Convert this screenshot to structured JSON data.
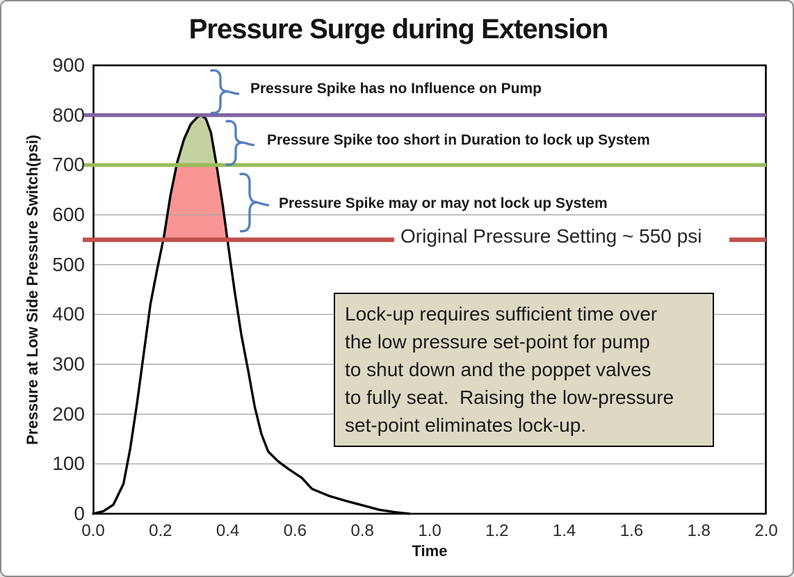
{
  "title": "Pressure Surge during Extension",
  "chart_data": {
    "type": "line",
    "title": "Pressure Surge during Extension",
    "xlabel": "Time",
    "ylabel": "Pressure at Low Side Pressure Switch(psi)",
    "xlim": [
      0.0,
      2.0
    ],
    "ylim": [
      0,
      900
    ],
    "xticks": [
      "0.0",
      "0.2",
      "0.4",
      "0.6",
      "0.8",
      "1.0",
      "1.2",
      "1.4",
      "1.6",
      "1.8",
      "2.0"
    ],
    "yticks": [
      "0",
      "100",
      "200",
      "300",
      "400",
      "500",
      "600",
      "700",
      "800",
      "900"
    ],
    "grid": {
      "horizontal_interval": 100,
      "color": "#A6A6A6",
      "max_line": 600
    },
    "series": [
      {
        "name": "pressure-surge",
        "color": "#000000",
        "points": [
          [
            0,
            0
          ],
          [
            0.03,
            5
          ],
          [
            0.06,
            18
          ],
          [
            0.09,
            60
          ],
          [
            0.11,
            130
          ],
          [
            0.13,
            220
          ],
          [
            0.15,
            320
          ],
          [
            0.17,
            420
          ],
          [
            0.19,
            490
          ],
          [
            0.21,
            555
          ],
          [
            0.23,
            640
          ],
          [
            0.25,
            706
          ],
          [
            0.27,
            752
          ],
          [
            0.29,
            782
          ],
          [
            0.31,
            796
          ],
          [
            0.32,
            800
          ],
          [
            0.335,
            793
          ],
          [
            0.35,
            765
          ],
          [
            0.365,
            706
          ],
          [
            0.385,
            620
          ],
          [
            0.4,
            545
          ],
          [
            0.42,
            448
          ],
          [
            0.44,
            360
          ],
          [
            0.46,
            290
          ],
          [
            0.48,
            215
          ],
          [
            0.5,
            160
          ],
          [
            0.52,
            125
          ],
          [
            0.55,
            105
          ],
          [
            0.58,
            90
          ],
          [
            0.62,
            72
          ],
          [
            0.65,
            50
          ],
          [
            0.7,
            36
          ],
          [
            0.75,
            26
          ],
          [
            0.8,
            17
          ],
          [
            0.85,
            8
          ],
          [
            0.9,
            3
          ],
          [
            0.94,
            0
          ]
        ]
      }
    ],
    "reference_lines": [
      {
        "value": 800,
        "color": "#8064A2",
        "label": ""
      },
      {
        "value": 700,
        "color": "#9BBB59",
        "label": ""
      },
      {
        "value": 550,
        "color": "#C0504D",
        "label": "Original Pressure Setting ~ 550 psi"
      }
    ],
    "shaded_regions": [
      {
        "name": "spike-above-700",
        "band": [
          700,
          800
        ],
        "color": "#C3CF9C"
      },
      {
        "name": "spike-550-to-700",
        "band": [
          550,
          700
        ],
        "color": "#FA8F8F"
      }
    ],
    "annotations": [
      {
        "text": "Pressure Spike has no Influence on Pump",
        "band": [
          800,
          900
        ]
      },
      {
        "text": "Pressure Spike too short in Duration to lock up System",
        "band": [
          700,
          800
        ]
      },
      {
        "text": "Pressure Spike may or may not lock up System",
        "band": [
          550,
          700
        ]
      }
    ],
    "brace_color": "#5580BF"
  },
  "note_box": {
    "fill": "#DDD9C3",
    "border": "#000000",
    "lines": [
      "Lock-up requires sufficient time over",
      "the low pressure set-point for pump",
      "to shut down and the poppet valves",
      "to fully seat.  Raising the low-pressure",
      "set-point eliminates lock-up."
    ]
  }
}
